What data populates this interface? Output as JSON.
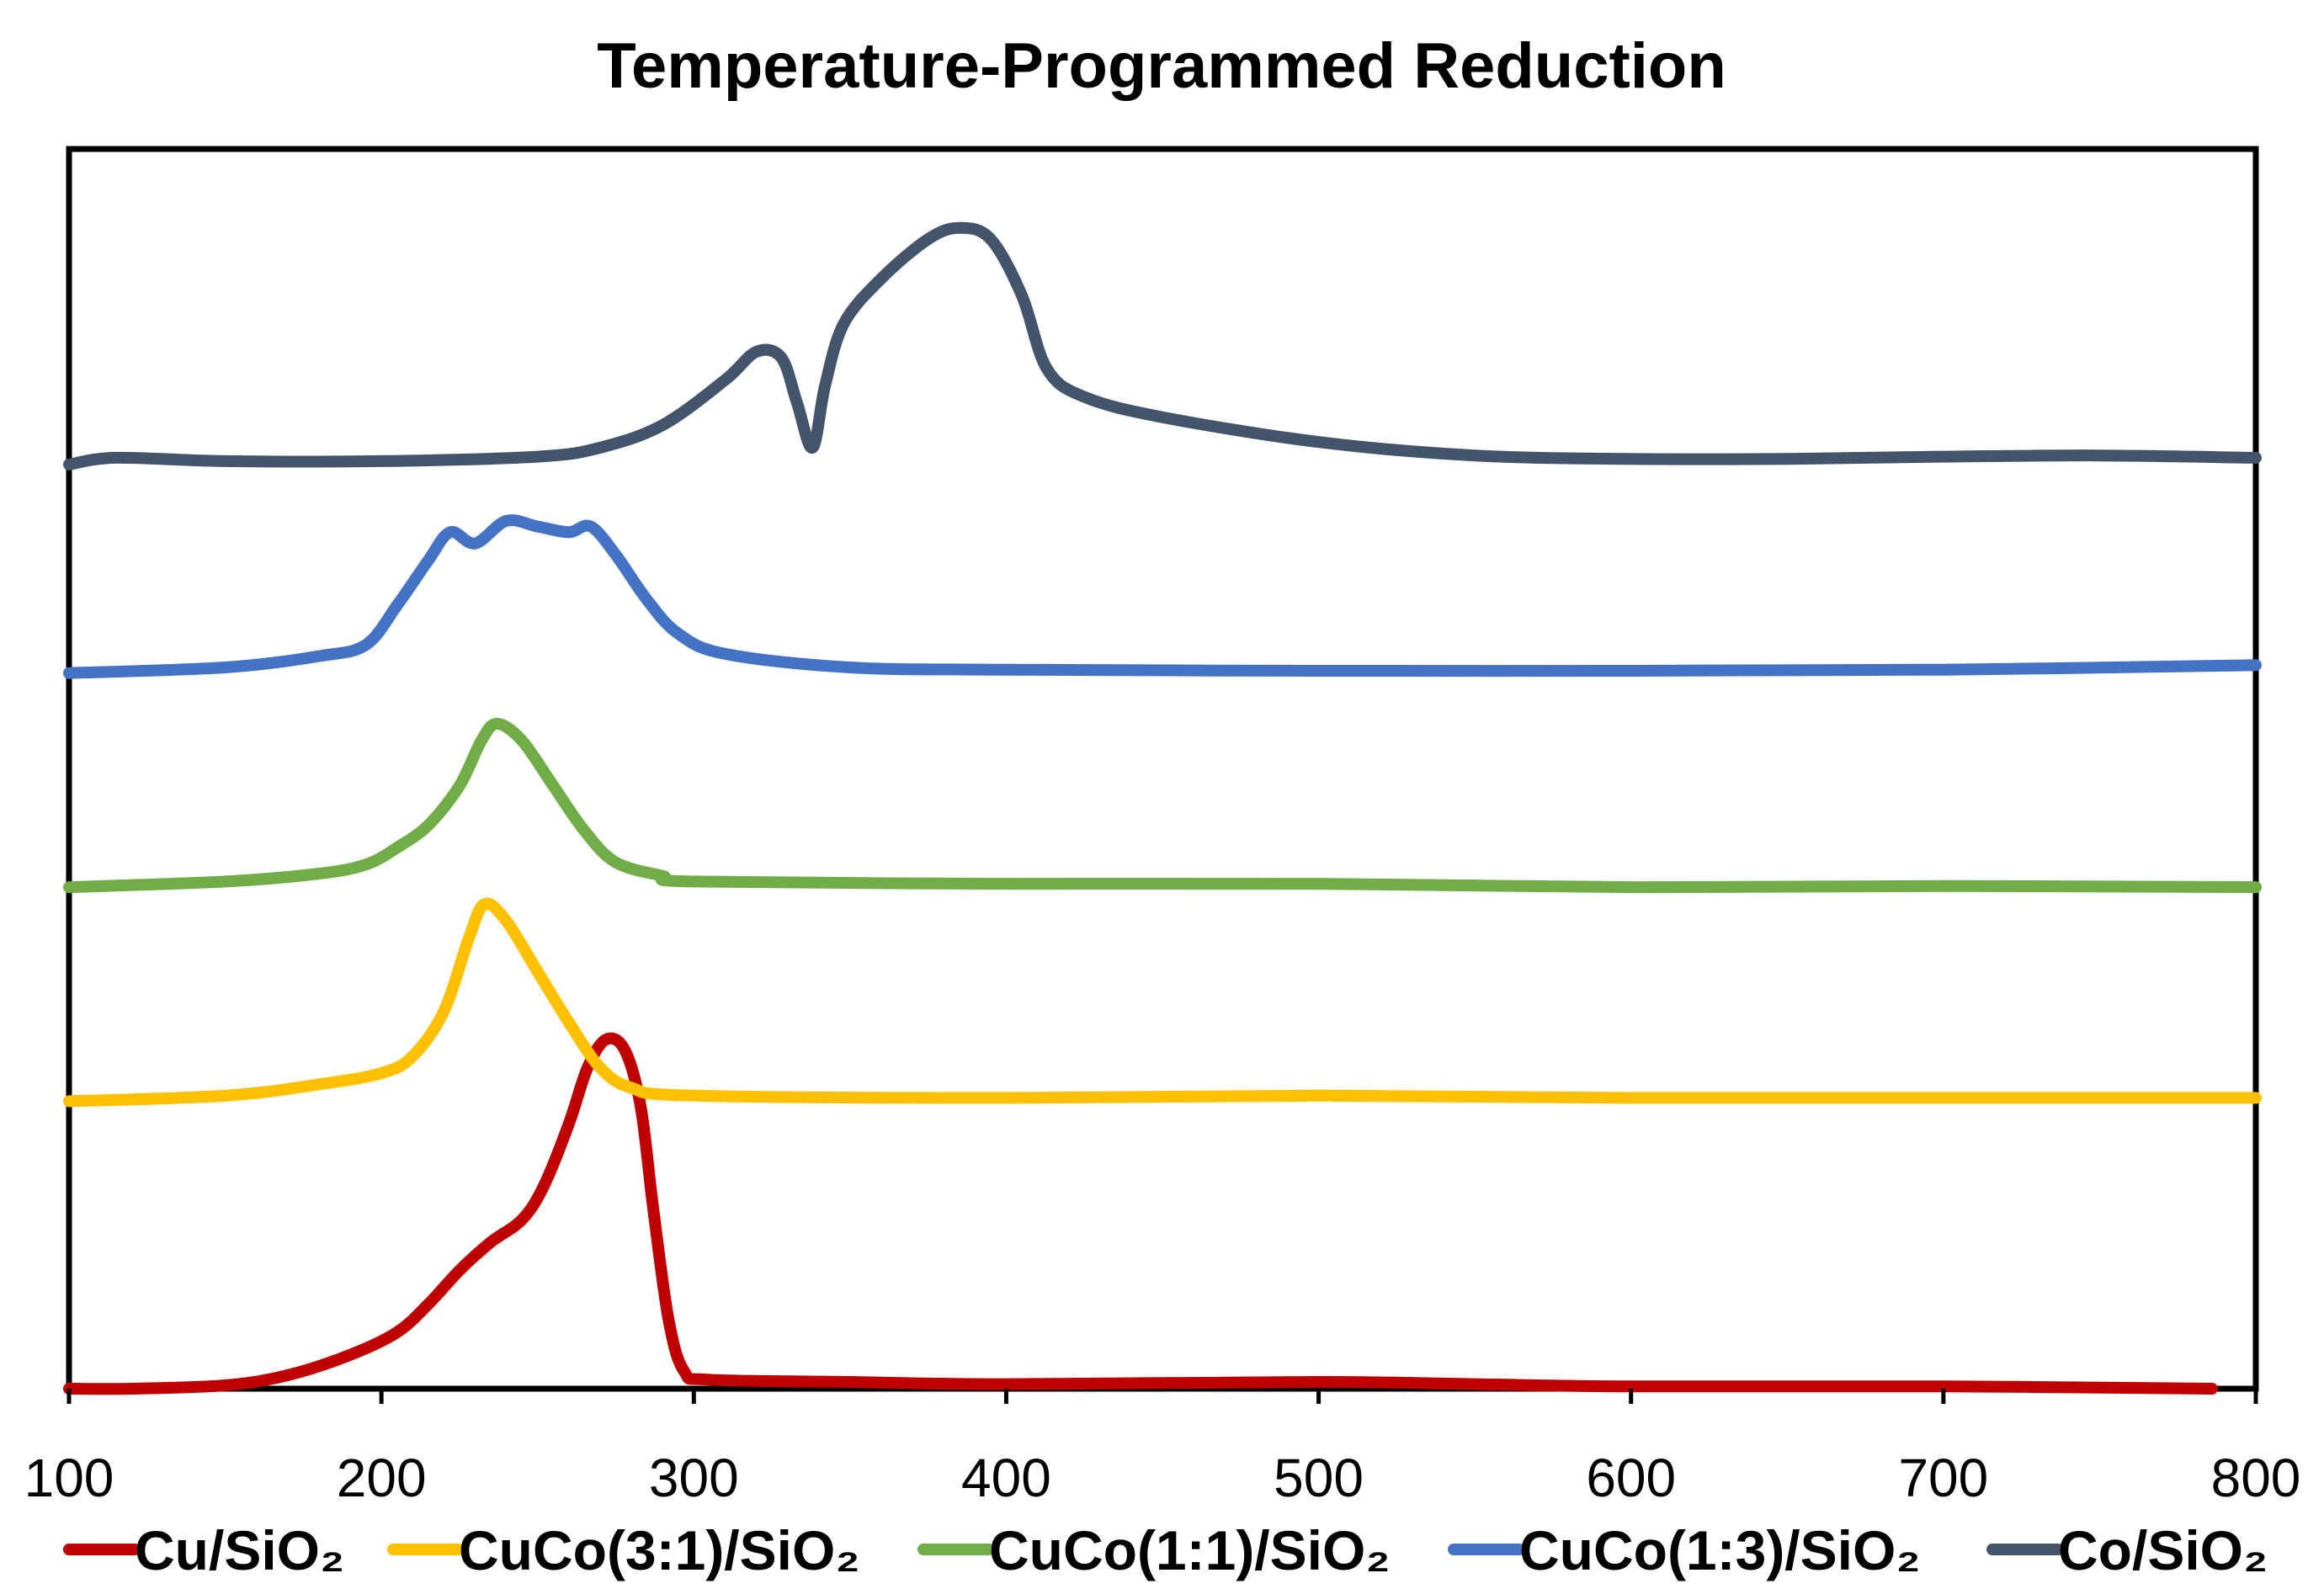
{
  "chart_data": {
    "type": "line",
    "title": "Temperature-Programmed Reduction",
    "xlabel": "",
    "ylabel": "",
    "xlim": [
      100,
      800
    ],
    "ylim": [
      0,
      11
    ],
    "x_ticks": [
      100,
      200,
      300,
      400,
      500,
      600,
      700,
      800
    ],
    "grid": false,
    "legend_position": "bottom",
    "series": [
      {
        "name": "Cu/SiO₂",
        "color": "#c00000",
        "points": [
          [
            100,
            0.0
          ],
          [
            120,
            0.0
          ],
          [
            150,
            0.03
          ],
          [
            170,
            0.12
          ],
          [
            190,
            0.3
          ],
          [
            205,
            0.5
          ],
          [
            215,
            0.75
          ],
          [
            225,
            1.05
          ],
          [
            235,
            1.3
          ],
          [
            245,
            1.5
          ],
          [
            252,
            1.8
          ],
          [
            260,
            2.35
          ],
          [
            266,
            2.85
          ],
          [
            272,
            3.1
          ],
          [
            278,
            3.0
          ],
          [
            283,
            2.5
          ],
          [
            287,
            1.6
          ],
          [
            292,
            0.6
          ],
          [
            297,
            0.15
          ],
          [
            305,
            0.08
          ],
          [
            350,
            0.06
          ],
          [
            400,
            0.04
          ],
          [
            500,
            0.06
          ],
          [
            550,
            0.04
          ],
          [
            600,
            0.02
          ],
          [
            700,
            0.02
          ],
          [
            786,
            0.0
          ]
        ]
      },
      {
        "name": "CuCo(3:1)/SiO₂",
        "color": "#ffc000",
        "points": [
          [
            100,
            2.55
          ],
          [
            150,
            2.6
          ],
          [
            180,
            2.7
          ],
          [
            200,
            2.8
          ],
          [
            210,
            2.95
          ],
          [
            220,
            3.35
          ],
          [
            228,
            4.0
          ],
          [
            233,
            4.3
          ],
          [
            240,
            4.15
          ],
          [
            250,
            3.7
          ],
          [
            260,
            3.25
          ],
          [
            270,
            2.85
          ],
          [
            280,
            2.67
          ],
          [
            300,
            2.6
          ],
          [
            400,
            2.58
          ],
          [
            500,
            2.6
          ],
          [
            600,
            2.58
          ],
          [
            700,
            2.58
          ],
          [
            800,
            2.58
          ]
        ]
      },
      {
        "name": "CuCo(1:1)/SiO₂",
        "color": "#70ad47",
        "points": [
          [
            100,
            4.45
          ],
          [
            150,
            4.5
          ],
          [
            180,
            4.57
          ],
          [
            195,
            4.65
          ],
          [
            205,
            4.8
          ],
          [
            215,
            5.0
          ],
          [
            225,
            5.35
          ],
          [
            232,
            5.75
          ],
          [
            237,
            5.9
          ],
          [
            245,
            5.75
          ],
          [
            255,
            5.35
          ],
          [
            265,
            4.95
          ],
          [
            275,
            4.67
          ],
          [
            290,
            4.55
          ],
          [
            300,
            4.5
          ],
          [
            400,
            4.48
          ],
          [
            500,
            4.48
          ],
          [
            600,
            4.45
          ],
          [
            700,
            4.46
          ],
          [
            800,
            4.45
          ]
        ]
      },
      {
        "name": "CuCo(1:3)/SiO₂",
        "color": "#4472c4",
        "points": [
          [
            100,
            6.35
          ],
          [
            150,
            6.4
          ],
          [
            180,
            6.5
          ],
          [
            195,
            6.6
          ],
          [
            205,
            6.95
          ],
          [
            215,
            7.35
          ],
          [
            222,
            7.6
          ],
          [
            230,
            7.5
          ],
          [
            240,
            7.7
          ],
          [
            250,
            7.65
          ],
          [
            260,
            7.6
          ],
          [
            267,
            7.65
          ],
          [
            275,
            7.4
          ],
          [
            285,
            7.0
          ],
          [
            295,
            6.7
          ],
          [
            310,
            6.52
          ],
          [
            350,
            6.4
          ],
          [
            400,
            6.38
          ],
          [
            500,
            6.37
          ],
          [
            600,
            6.37
          ],
          [
            700,
            6.38
          ],
          [
            800,
            6.42
          ]
        ]
      },
      {
        "name": "Co/SiO₂",
        "color": "#44546a",
        "points": [
          [
            100,
            8.2
          ],
          [
            115,
            8.26
          ],
          [
            150,
            8.23
          ],
          [
            200,
            8.23
          ],
          [
            250,
            8.27
          ],
          [
            270,
            8.35
          ],
          [
            290,
            8.55
          ],
          [
            310,
            8.95
          ],
          [
            320,
            9.2
          ],
          [
            328,
            9.15
          ],
          [
            333,
            8.75
          ],
          [
            338,
            8.35
          ],
          [
            342,
            8.9
          ],
          [
            348,
            9.45
          ],
          [
            360,
            9.85
          ],
          [
            375,
            10.2
          ],
          [
            385,
            10.3
          ],
          [
            395,
            10.2
          ],
          [
            405,
            9.7
          ],
          [
            413,
            9.05
          ],
          [
            425,
            8.8
          ],
          [
            450,
            8.62
          ],
          [
            500,
            8.4
          ],
          [
            550,
            8.28
          ],
          [
            600,
            8.25
          ],
          [
            650,
            8.25
          ],
          [
            700,
            8.27
          ],
          [
            750,
            8.28
          ],
          [
            800,
            8.26
          ]
        ]
      }
    ]
  }
}
